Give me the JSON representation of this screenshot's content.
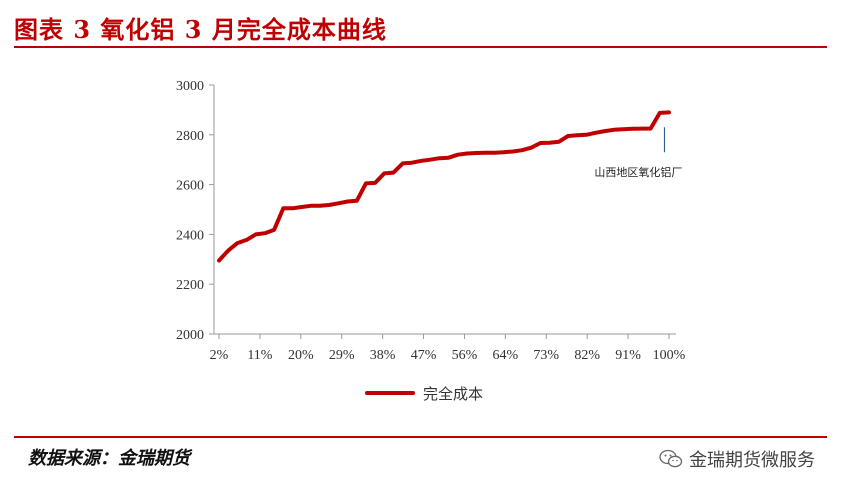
{
  "title": "图表 3  氧化铝 3 月完全成本曲线",
  "source": "数据来源：金瑞期货",
  "watermark": "金瑞期货微服务",
  "colors": {
    "accent": "#c00000",
    "line": "#c00000"
  },
  "chart_data": {
    "type": "line",
    "title": "",
    "xlabel": "",
    "ylabel": "",
    "ylim": [
      2000,
      3000
    ],
    "yticks": [
      "2000",
      "2200",
      "2400",
      "2600",
      "2800",
      "3000"
    ],
    "xticks": [
      "2%",
      "11%",
      "20%",
      "29%",
      "38%",
      "47%",
      "56%",
      "64%",
      "73%",
      "82%",
      "91%",
      "100%"
    ],
    "grid": false,
    "legend": "bottom-center",
    "series": [
      {
        "name": "完全成本",
        "x": [
          2,
          4,
          6,
          8,
          10,
          12,
          14,
          16,
          18,
          20,
          22,
          24,
          26,
          28,
          30,
          32,
          34,
          36,
          38,
          40,
          42,
          44,
          46,
          48,
          50,
          52,
          54,
          56,
          58,
          60,
          62,
          64,
          66,
          68,
          70,
          72,
          74,
          76,
          78,
          80,
          82,
          84,
          86,
          88,
          90,
          92,
          94,
          96,
          98,
          100
        ],
        "values": [
          2295,
          2335,
          2365,
          2378,
          2400,
          2405,
          2418,
          2505,
          2505,
          2510,
          2515,
          2515,
          2518,
          2525,
          2532,
          2535,
          2605,
          2607,
          2645,
          2648,
          2685,
          2688,
          2695,
          2700,
          2706,
          2708,
          2720,
          2725,
          2727,
          2728,
          2728,
          2730,
          2733,
          2738,
          2748,
          2767,
          2768,
          2772,
          2795,
          2798,
          2800,
          2808,
          2815,
          2820,
          2822,
          2824,
          2825,
          2825,
          2888,
          2890
        ]
      }
    ],
    "annotations": [
      {
        "text": "山西地区氧化铝厂",
        "x": 99
      }
    ]
  }
}
